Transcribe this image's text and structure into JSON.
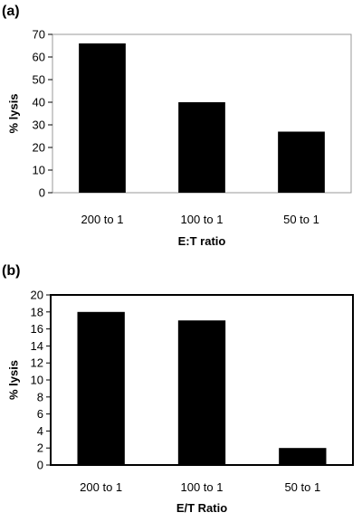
{
  "chart_data": [
    {
      "panel_label": "(a)",
      "type": "bar",
      "categories": [
        "200 to 1",
        "100 to 1",
        "50 to 1"
      ],
      "values": [
        66,
        40,
        27
      ],
      "xlabel": "E:T ratio",
      "ylabel": "% lysis",
      "ylim": [
        0,
        70
      ],
      "yticks": [
        0,
        10,
        20,
        30,
        40,
        50,
        60,
        70
      ],
      "grid": false,
      "bar_color": "#000000",
      "frame_color": "#999999"
    },
    {
      "panel_label": "(b)",
      "type": "bar",
      "categories": [
        "200 to 1",
        "100 to 1",
        "50 to 1"
      ],
      "values": [
        18,
        17,
        2
      ],
      "xlabel": "E/T Ratio",
      "ylabel": "% lysis",
      "ylim": [
        0,
        20
      ],
      "yticks": [
        0,
        2,
        4,
        6,
        8,
        10,
        12,
        14,
        16,
        18,
        20
      ],
      "grid": false,
      "bar_color": "#000000",
      "frame_color": "#000000"
    }
  ]
}
